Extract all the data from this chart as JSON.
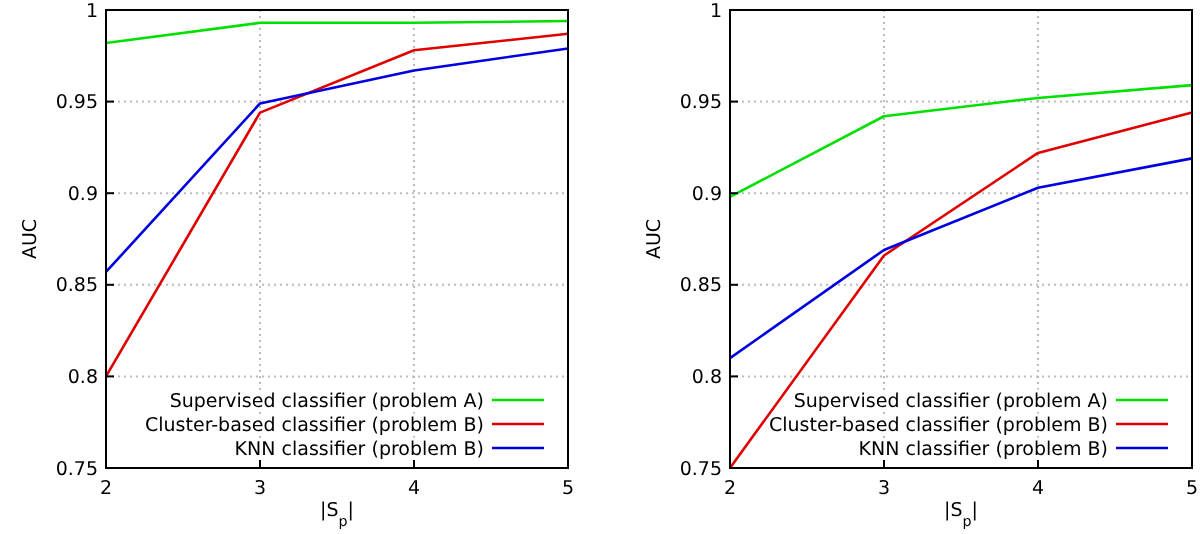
{
  "chart_data": [
    {
      "type": "line",
      "xlabel": "|S$_{p}$|",
      "ylabel": "AUC",
      "x": [
        2,
        3,
        4,
        5
      ],
      "xlim": [
        2,
        5
      ],
      "xticks": [
        2,
        3,
        4,
        5
      ],
      "ylim": [
        0.75,
        1
      ],
      "yticks": [
        0.75,
        0.8,
        0.85,
        0.9,
        0.95,
        1
      ],
      "grid": true,
      "legend": "bottom right",
      "line_style": "solid",
      "series": [
        {
          "name": "Supervised classifier (problem A)",
          "color": "#00e000",
          "values": [
            0.982,
            0.993,
            0.993,
            0.994
          ]
        },
        {
          "name": "Cluster-based classifier (problem B)",
          "color": "#e00000",
          "values": [
            0.8,
            0.944,
            0.978,
            0.987
          ]
        },
        {
          "name": "KNN classifier (problem B)",
          "color": "#0000e0",
          "values": [
            0.857,
            0.949,
            0.967,
            0.979
          ]
        }
      ]
    },
    {
      "type": "line",
      "xlabel": "|S$_{p}$|",
      "ylabel": "AUC",
      "x": [
        2,
        3,
        4,
        5
      ],
      "xlim": [
        2,
        5
      ],
      "xticks": [
        2,
        3,
        4,
        5
      ],
      "ylim": [
        0.75,
        1
      ],
      "yticks": [
        0.75,
        0.8,
        0.85,
        0.9,
        0.95,
        1
      ],
      "grid": true,
      "legend": "bottom right",
      "line_style": "solid",
      "series": [
        {
          "name": "Supervised classifier (problem A)",
          "color": "#00e000",
          "values": [
            0.898,
            0.942,
            0.952,
            0.959
          ]
        },
        {
          "name": "Cluster-based classifier (problem B)",
          "color": "#e00000",
          "values": [
            0.75,
            0.866,
            0.922,
            0.944
          ]
        },
        {
          "name": "KNN classifier (problem B)",
          "color": "#0000e0",
          "values": [
            0.81,
            0.869,
            0.903,
            0.919
          ]
        }
      ]
    }
  ]
}
